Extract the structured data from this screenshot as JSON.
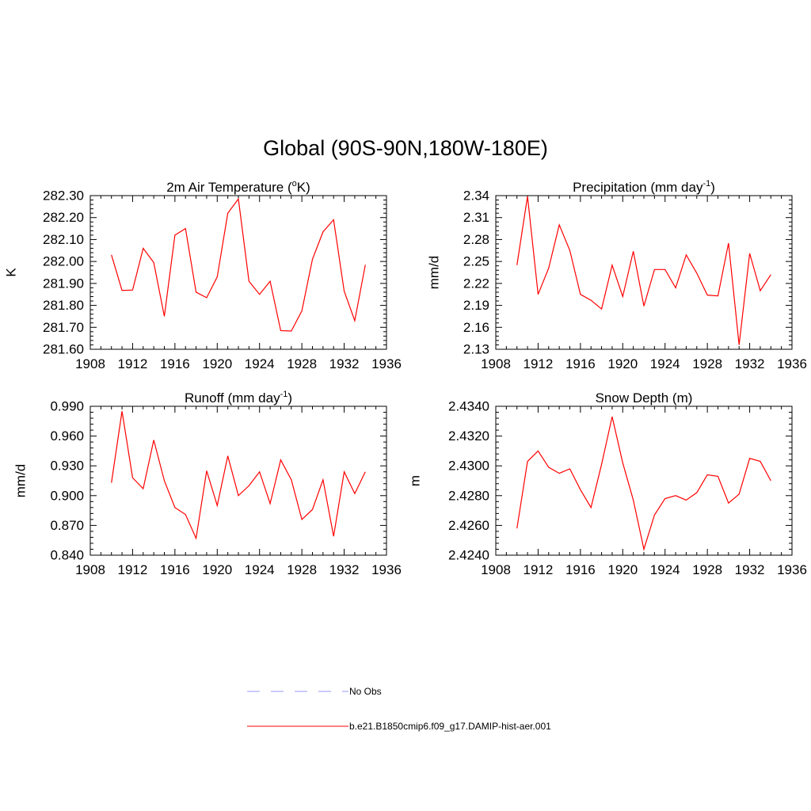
{
  "page_title": "Global (90S-90N,180W-180E)",
  "series_color": "#ff0000",
  "chart_data": [
    {
      "type": "line",
      "title": "2m Air Temperature (",
      "title_sup": "o",
      "title_end": "K)",
      "ylabel": "K",
      "xlim": [
        1908,
        1936
      ],
      "ylim": [
        281.6,
        282.3
      ],
      "xticks": [
        "1908",
        "1912",
        "1916",
        "1920",
        "1924",
        "1928",
        "1932",
        "1936"
      ],
      "yticks": [
        "281.60",
        "281.70",
        "281.80",
        "281.90",
        "282.00",
        "282.10",
        "282.20",
        "282.30"
      ],
      "x": [
        1910,
        1911,
        1912,
        1913,
        1914,
        1915,
        1916,
        1917,
        1918,
        1919,
        1920,
        1921,
        1922,
        1923,
        1924,
        1925,
        1926,
        1927,
        1928,
        1929,
        1930,
        1931,
        1932,
        1933,
        1934
      ],
      "values": [
        282.03,
        281.868,
        281.87,
        282.06,
        281.995,
        281.75,
        282.12,
        282.15,
        281.86,
        281.835,
        281.93,
        282.22,
        282.285,
        281.91,
        281.85,
        281.91,
        281.685,
        281.683,
        281.775,
        282.01,
        282.135,
        282.19,
        281.865,
        281.73,
        281.985
      ]
    },
    {
      "type": "line",
      "title": "Precipitation (mm day",
      "title_sup": "-1",
      "title_end": ")",
      "ylabel": "mm/d",
      "xlim": [
        1908,
        1936
      ],
      "ylim": [
        2.13,
        2.34
      ],
      "xticks": [
        "1908",
        "1912",
        "1916",
        "1920",
        "1924",
        "1928",
        "1932",
        "1936"
      ],
      "yticks": [
        "2.13",
        "2.16",
        "2.19",
        "2.22",
        "2.25",
        "2.28",
        "2.31",
        "2.34"
      ],
      "x": [
        1910,
        1911,
        1912,
        1913,
        1914,
        1915,
        1916,
        1917,
        1918,
        1919,
        1920,
        1921,
        1922,
        1923,
        1924,
        1925,
        1926,
        1927,
        1928,
        1929,
        1930,
        1931,
        1932,
        1933,
        1934
      ],
      "values": [
        2.245,
        2.339,
        2.205,
        2.241,
        2.3,
        2.265,
        2.205,
        2.197,
        2.185,
        2.245,
        2.202,
        2.264,
        2.189,
        2.239,
        2.239,
        2.214,
        2.259,
        2.234,
        2.204,
        2.203,
        2.275,
        2.136,
        2.261,
        2.21,
        2.232
      ]
    },
    {
      "type": "line",
      "title": "Runoff (mm day",
      "title_sup": "-1",
      "title_end": ")",
      "ylabel": "mm/d",
      "xlim": [
        1908,
        1936
      ],
      "ylim": [
        0.84,
        0.99
      ],
      "xticks": [
        "1908",
        "1912",
        "1916",
        "1920",
        "1924",
        "1928",
        "1932",
        "1936"
      ],
      "yticks": [
        "0.840",
        "0.870",
        "0.900",
        "0.930",
        "0.960",
        "0.990"
      ],
      "x": [
        1910,
        1911,
        1912,
        1913,
        1914,
        1915,
        1916,
        1917,
        1918,
        1919,
        1920,
        1921,
        1922,
        1923,
        1924,
        1925,
        1926,
        1927,
        1928,
        1929,
        1930,
        1931,
        1932,
        1933,
        1934
      ],
      "values": [
        0.913,
        0.985,
        0.918,
        0.907,
        0.956,
        0.915,
        0.888,
        0.881,
        0.857,
        0.925,
        0.89,
        0.94,
        0.9,
        0.91,
        0.924,
        0.892,
        0.936,
        0.916,
        0.876,
        0.886,
        0.916,
        0.859,
        0.924,
        0.902,
        0.924
      ]
    },
    {
      "type": "line",
      "title": "Snow Depth (m)",
      "title_sup": "",
      "title_end": "",
      "ylabel": "m",
      "xlim": [
        1908,
        1936
      ],
      "ylim": [
        2.424,
        2.434
      ],
      "xticks": [
        "1908",
        "1912",
        "1916",
        "1920",
        "1924",
        "1928",
        "1932",
        "1936"
      ],
      "yticks": [
        "2.4240",
        "2.4260",
        "2.4280",
        "2.4300",
        "2.4320",
        "2.4340"
      ],
      "x": [
        1910,
        1911,
        1912,
        1913,
        1914,
        1915,
        1916,
        1917,
        1918,
        1919,
        1920,
        1921,
        1922,
        1923,
        1924,
        1925,
        1926,
        1927,
        1928,
        1929,
        1930,
        1931,
        1932,
        1933,
        1934
      ],
      "values": [
        2.4258,
        2.4303,
        2.431,
        2.4299,
        2.4295,
        2.4298,
        2.4284,
        2.4272,
        2.4301,
        2.4333,
        2.4302,
        2.4277,
        2.4244,
        2.4267,
        2.4278,
        2.428,
        2.4277,
        2.4282,
        2.4294,
        2.4293,
        2.4275,
        2.4281,
        2.4305,
        2.4303,
        2.429
      ]
    }
  ],
  "legend": {
    "items": [
      {
        "label": "No Obs",
        "color": "#9999ff",
        "style": "dashed"
      },
      {
        "label": "b.e21.B1850cmip6.f09_g17.DAMIP-hist-aer.001",
        "color": "#ff0000",
        "style": "solid"
      }
    ]
  }
}
